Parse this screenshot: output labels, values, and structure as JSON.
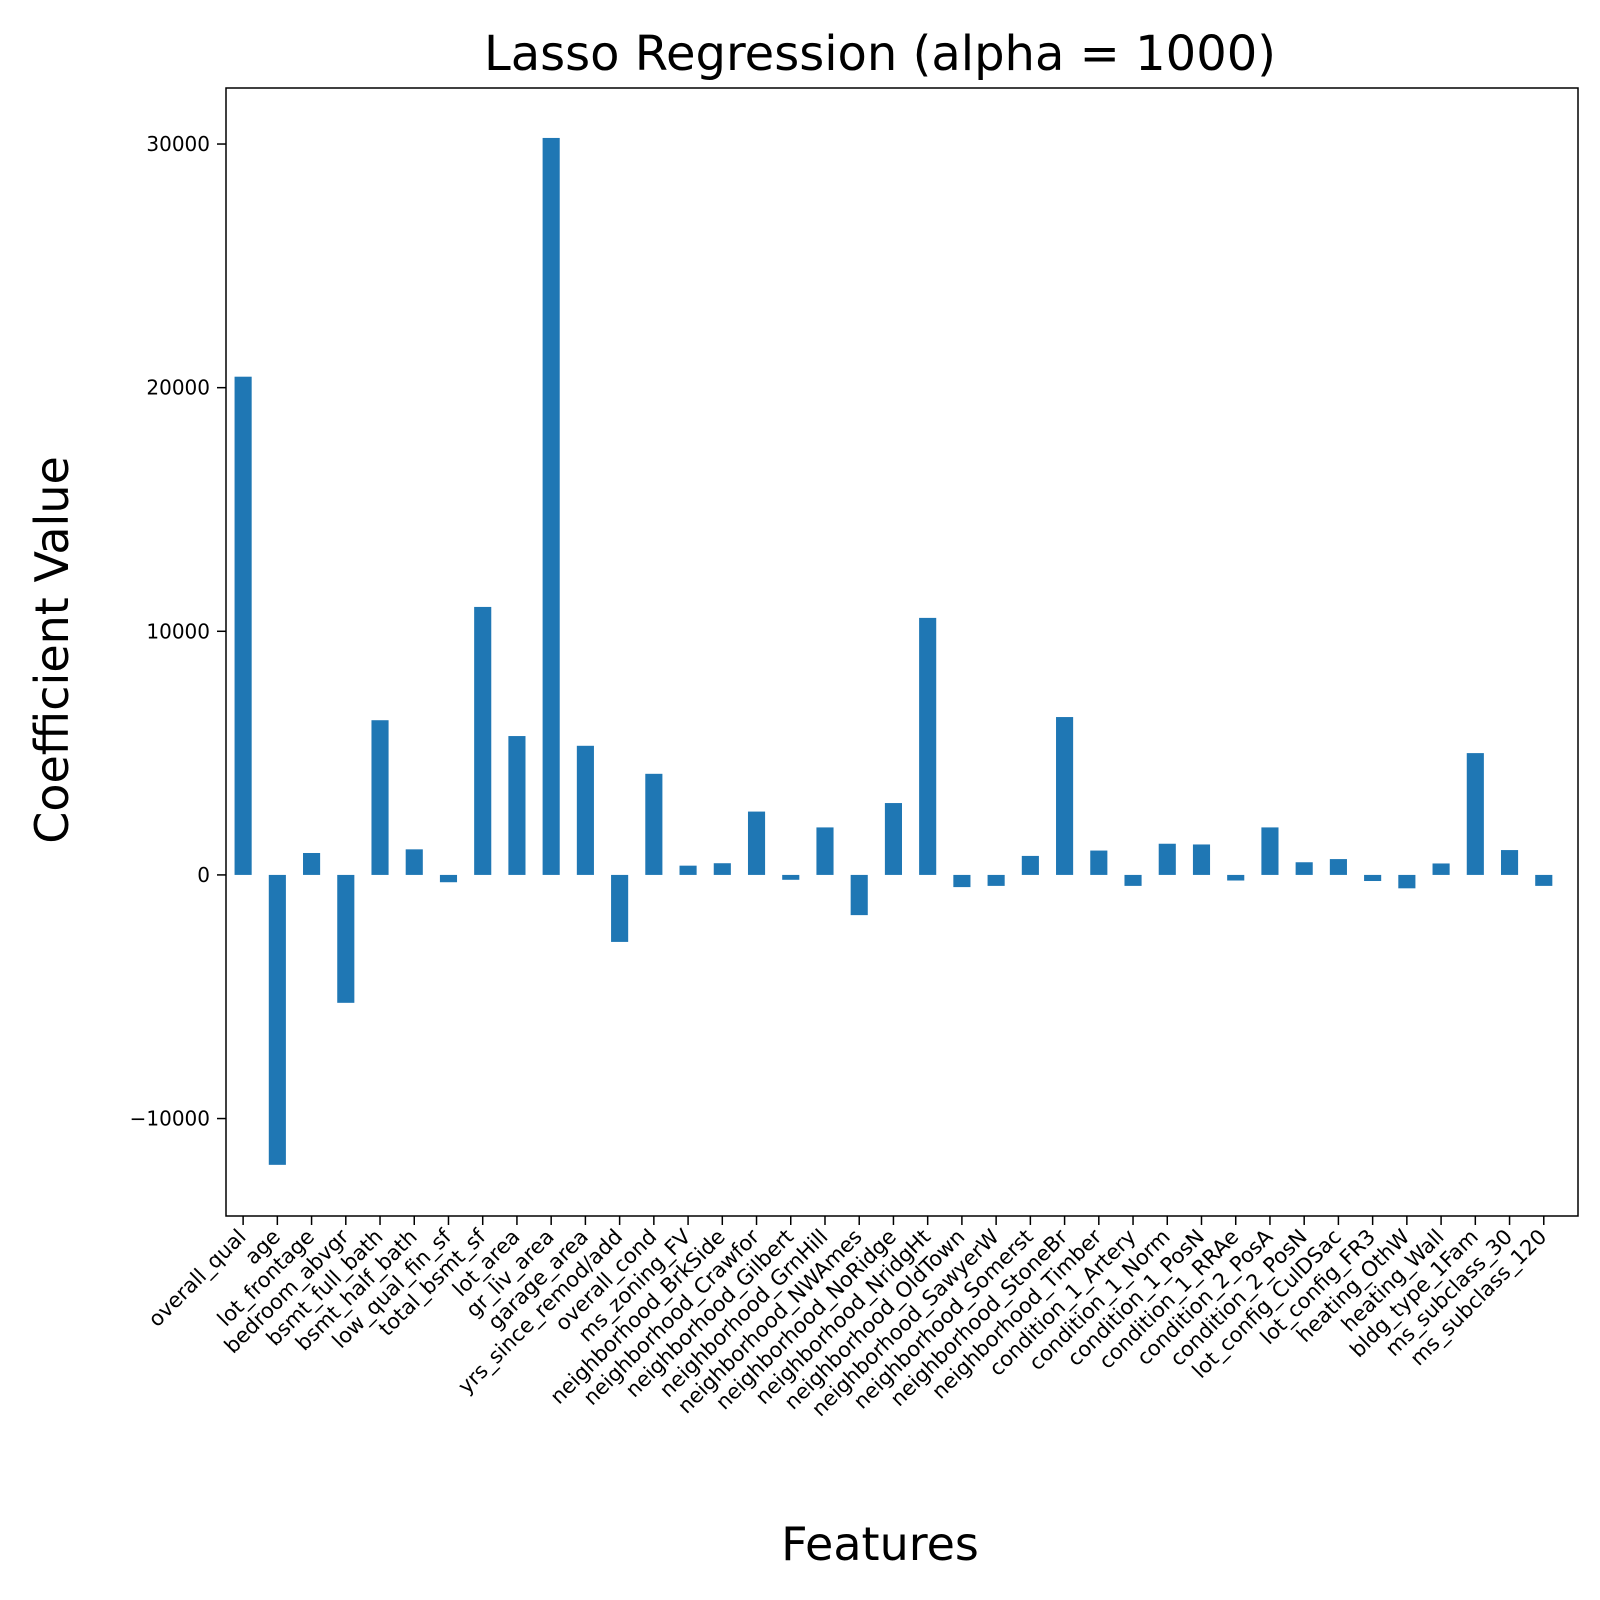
{
  "chart_data": {
    "type": "bar",
    "title": "Lasso Regression (alpha = 1000)",
    "xlabel": "Features",
    "ylabel": "Coefficient Value",
    "ylim": [
      -14000,
      32300
    ],
    "yticks": [
      -10000,
      0,
      10000,
      20000,
      30000
    ],
    "ytick_labels": [
      "−10000",
      "0",
      "10000",
      "20000",
      "30000"
    ],
    "grid": false,
    "legend": "none",
    "color": "#1f77b4",
    "categories": [
      "overall_qual",
      "age",
      "lot_frontage",
      "bedroom_abvgr",
      "bsmt_full_bath",
      "bsmt_half_bath",
      "low_qual_fin_sf",
      "total_bsmt_sf",
      "lot_area",
      "gr_liv_area",
      "garage_area",
      "yrs_since_remod/add",
      "overall_cond",
      "ms_zoning_FV",
      "neighborhood_BrkSide",
      "neighborhood_Crawfor",
      "neighborhood_Gilbert",
      "neighborhood_GrnHill",
      "neighborhood_NWAmes",
      "neighborhood_NoRidge",
      "neighborhood_NridgHt",
      "neighborhood_OldTown",
      "neighborhood_SawyerW",
      "neighborhood_Somerst",
      "neighborhood_StoneBr",
      "neighborhood_Timber",
      "condition_1_Artery",
      "condition_1_Norm",
      "condition_1_PosN",
      "condition_1_RRAe",
      "condition_2_PosA",
      "condition_2_PosN",
      "lot_config_CulDSac",
      "lot_config_FR3",
      "heating_OthW",
      "heating_Wall",
      "bldg_type_1Fam",
      "ms_subclass_30",
      "ms_subclass_120"
    ],
    "values": [
      20450,
      -11900,
      900,
      -5250,
      6350,
      1050,
      -300,
      11000,
      5700,
      30250,
      5300,
      -2750,
      4150,
      380,
      480,
      2600,
      -200,
      1950,
      -1650,
      2950,
      10550,
      -500,
      -450,
      780,
      6480,
      1000,
      -450,
      1280,
      1250,
      -230,
      1950,
      520,
      650,
      -250,
      -550,
      470,
      5000,
      1020,
      -450
    ]
  }
}
